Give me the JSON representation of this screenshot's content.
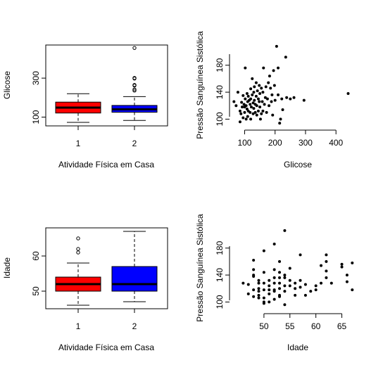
{
  "chart_data": [
    {
      "type": "box",
      "title": "",
      "xlabel": "Atividade Física em Casa",
      "ylabel": "Glicose",
      "categories": [
        "1",
        "2"
      ],
      "ylim": [
        55,
        470
      ],
      "yticks": [
        100,
        300
      ],
      "ytick_labels": [
        "100",
        "300"
      ],
      "boxes": [
        {
          "category": "1",
          "color": "#ff0000",
          "whisker_low": 73,
          "q1": 121,
          "median": 149,
          "q3": 177,
          "whisker_high": 220,
          "outliers": []
        },
        {
          "category": "2",
          "color": "#0000ff",
          "whisker_low": 83,
          "q1": 125,
          "median": 140,
          "q3": 160,
          "whisker_high": 205,
          "outliers": [
            236,
            242,
            262,
            265,
            298,
            301,
            455
          ]
        }
      ]
    },
    {
      "type": "scatter",
      "title": "",
      "xlabel": "Glicose",
      "ylabel": "Pressão Sanguínea Sistólica",
      "xlim": [
        55,
        455
      ],
      "ylim": [
        90,
        210
      ],
      "xticks": [
        100,
        200,
        300,
        400
      ],
      "xtick_labels": [
        "100",
        "200",
        "300",
        "400"
      ],
      "yticks": [
        100,
        140,
        180
      ],
      "ytick_labels": [
        "100",
        "140",
        "180"
      ],
      "points": [
        [
          65,
          126
        ],
        [
          72,
          120
        ],
        [
          78,
          140
        ],
        [
          85,
          112
        ],
        [
          85,
          96
        ],
        [
          88,
          108
        ],
        [
          90,
          125
        ],
        [
          92,
          118
        ],
        [
          95,
          135
        ],
        [
          95,
          102
        ],
        [
          98,
          122
        ],
        [
          100,
          118
        ],
        [
          100,
          110
        ],
        [
          102,
          130
        ],
        [
          102,
          176
        ],
        [
          105,
          100
        ],
        [
          105,
          120
        ],
        [
          108,
          115
        ],
        [
          108,
          138
        ],
        [
          110,
          126
        ],
        [
          110,
          104
        ],
        [
          112,
          112
        ],
        [
          112,
          134
        ],
        [
          115,
          128
        ],
        [
          118,
          110
        ],
        [
          118,
          122
        ],
        [
          120,
          130
        ],
        [
          120,
          145
        ],
        [
          120,
          100
        ],
        [
          122,
          118
        ],
        [
          125,
          160
        ],
        [
          125,
          136
        ],
        [
          128,
          124
        ],
        [
          128,
          108
        ],
        [
          130,
          140
        ],
        [
          130,
          116
        ],
        [
          132,
          128
        ],
        [
          132,
          148
        ],
        [
          135,
          110
        ],
        [
          135,
          122
        ],
        [
          138,
          154
        ],
        [
          138,
          134
        ],
        [
          140,
          120
        ],
        [
          140,
          106
        ],
        [
          142,
          142
        ],
        [
          145,
          112
        ],
        [
          145,
          130
        ],
        [
          148,
          150
        ],
        [
          148,
          126
        ],
        [
          150,
          138
        ],
        [
          150,
          118
        ],
        [
          152,
          100
        ],
        [
          155,
          108
        ],
        [
          155,
          146
        ],
        [
          158,
          126
        ],
        [
          160,
          140
        ],
        [
          160,
          112
        ],
        [
          162,
          176
        ],
        [
          165,
          122
        ],
        [
          168,
          132
        ],
        [
          170,
          148
        ],
        [
          172,
          110
        ],
        [
          175,
          130
        ],
        [
          178,
          154
        ],
        [
          180,
          120
        ],
        [
          182,
          164
        ],
        [
          185,
          146
        ],
        [
          188,
          126
        ],
        [
          190,
          136
        ],
        [
          192,
          106
        ],
        [
          195,
          172
        ],
        [
          198,
          150
        ],
        [
          200,
          128
        ],
        [
          205,
          208
        ],
        [
          210,
          136
        ],
        [
          210,
          176
        ],
        [
          215,
          94
        ],
        [
          218,
          100
        ],
        [
          222,
          130
        ],
        [
          225,
          114
        ],
        [
          235,
          192
        ],
        [
          238,
          132
        ],
        [
          250,
          130
        ],
        [
          262,
          132
        ],
        [
          295,
          128
        ],
        [
          440,
          138
        ]
      ]
    },
    {
      "type": "box",
      "title": "",
      "xlabel": "Atividade Física em Casa",
      "ylabel": "Idade",
      "categories": [
        "1",
        "2"
      ],
      "ylim": [
        45,
        68
      ],
      "yticks": [
        50,
        60
      ],
      "ytick_labels": [
        "50",
        "60"
      ],
      "boxes": [
        {
          "category": "1",
          "color": "#ff0000",
          "whisker_low": 46,
          "q1": 50,
          "median": 52,
          "q3": 54,
          "whisker_high": 58,
          "outliers": [
            61,
            62,
            65
          ]
        },
        {
          "category": "2",
          "color": "#0000ff",
          "whisker_low": 47,
          "q1": 50,
          "median": 52,
          "q3": 57,
          "whisker_high": 67,
          "outliers": []
        }
      ]
    },
    {
      "type": "scatter",
      "title": "",
      "xlabel": "Idade",
      "ylabel": "Pressão Sanguínea Sistólica",
      "xlim": [
        45,
        67.5
      ],
      "ylim": [
        90,
        210
      ],
      "xticks": [
        50,
        55,
        60,
        65
      ],
      "xtick_labels": [
        "50",
        "55",
        "60",
        "65"
      ],
      "yticks": [
        100,
        140,
        180
      ],
      "ytick_labels": [
        "100",
        "140",
        "180"
      ],
      "points": [
        [
          46,
          128
        ],
        [
          47,
          126
        ],
        [
          47,
          112
        ],
        [
          48,
          108
        ],
        [
          48,
          138
        ],
        [
          48,
          162
        ],
        [
          48,
          148
        ],
        [
          48,
          118
        ],
        [
          48,
          140
        ],
        [
          49,
          116
        ],
        [
          49,
          120
        ],
        [
          49,
          128
        ],
        [
          49,
          132
        ],
        [
          49,
          110
        ],
        [
          49,
          106
        ],
        [
          50,
          100
        ],
        [
          50,
          98
        ],
        [
          50,
          106
        ],
        [
          50,
          118
        ],
        [
          50,
          128
        ],
        [
          50,
          144
        ],
        [
          50,
          176
        ],
        [
          51,
          112
        ],
        [
          51,
          124
        ],
        [
          51,
          132
        ],
        [
          51,
          118
        ],
        [
          51,
          100
        ],
        [
          52,
          104
        ],
        [
          52,
          116
        ],
        [
          52,
          128
        ],
        [
          52,
          136
        ],
        [
          52,
          148
        ],
        [
          52,
          186
        ],
        [
          52,
          118
        ],
        [
          53,
          108
        ],
        [
          53,
          120
        ],
        [
          53,
          128
        ],
        [
          53,
          136
        ],
        [
          53,
          110
        ],
        [
          53,
          144
        ],
        [
          53,
          160
        ],
        [
          54,
          96
        ],
        [
          54,
          116
        ],
        [
          54,
          124
        ],
        [
          54,
          136
        ],
        [
          54,
          206
        ],
        [
          54,
          140
        ],
        [
          55,
          124
        ],
        [
          55,
          132
        ],
        [
          55,
          150
        ],
        [
          56,
          110
        ],
        [
          56,
          128
        ],
        [
          56,
          120
        ],
        [
          57,
          122
        ],
        [
          57,
          132
        ],
        [
          57,
          170
        ],
        [
          58,
          110
        ],
        [
          58,
          126
        ],
        [
          59,
          116
        ],
        [
          60,
          118
        ],
        [
          60,
          124
        ],
        [
          61,
          128
        ],
        [
          61,
          154
        ],
        [
          62,
          136
        ],
        [
          62,
          146
        ],
        [
          62,
          160
        ],
        [
          62,
          170
        ],
        [
          63,
          128
        ],
        [
          65,
          152
        ],
        [
          65,
          156
        ],
        [
          66,
          130
        ],
        [
          66,
          140
        ],
        [
          67,
          118
        ],
        [
          67,
          158
        ]
      ]
    }
  ]
}
